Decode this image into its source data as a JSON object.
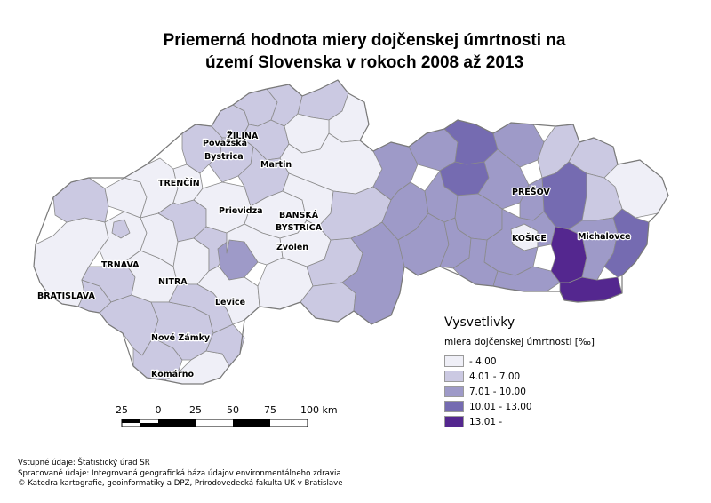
{
  "title": {
    "line1": "Priemerná hodnota miery dojčenskej úmrtnosti na",
    "line2": "území Slovenska v rokoch 2008 až 2013"
  },
  "cities": [
    {
      "key": "zilina",
      "label": "ŽILINA"
    },
    {
      "key": "povazska1",
      "label": "Považská"
    },
    {
      "key": "povazska2",
      "label": "Bystrica"
    },
    {
      "key": "martin",
      "label": "Martin"
    },
    {
      "key": "trencin",
      "label": "TRENČÍN"
    },
    {
      "key": "prievidza",
      "label": "Prievidza"
    },
    {
      "key": "bb1",
      "label": "BANSKÁ"
    },
    {
      "key": "bb2",
      "label": "BYSTRICA"
    },
    {
      "key": "zvolen",
      "label": "Zvolen"
    },
    {
      "key": "trnava",
      "label": "TRNAVA"
    },
    {
      "key": "nitra",
      "label": "NITRA"
    },
    {
      "key": "bratislava",
      "label": "BRATISLAVA"
    },
    {
      "key": "levice",
      "label": "Levice"
    },
    {
      "key": "novezamky",
      "label": "Nové Zámky"
    },
    {
      "key": "komarno",
      "label": "Komárno"
    },
    {
      "key": "presov",
      "label": "PREŠOV"
    },
    {
      "key": "kosice",
      "label": "KOŠICE"
    },
    {
      "key": "michalovce",
      "label": "Michalovce"
    }
  ],
  "legend": {
    "title": "Vysvetlivky",
    "subtitle": "miera dojčenskej úmrtnosti [‰]",
    "classes": [
      {
        "label": " - 4.00",
        "color": "#efeff7"
      },
      {
        "label": "4.01 - 7.00",
        "color": "#cbc9e2"
      },
      {
        "label": "7.01 - 10.00",
        "color": "#9e9ac8"
      },
      {
        "label": "10.01 - 13.00",
        "color": "#756bb1"
      },
      {
        "label": "13.01 -",
        "color": "#54278f"
      }
    ]
  },
  "scale_bar": {
    "labels": [
      "25",
      "0",
      "25",
      "50",
      "75",
      "100 km"
    ]
  },
  "credits": {
    "line1": "Vstupné údaje: Štatistický úrad SR",
    "line2": "Spracované údaje: Integrovaná geografická báza údajov environmentálneho zdravia",
    "line3": "© Katedra kartografie, geoinformatiky a DPZ, Prírodovedecká fakulta UK v Bratislave"
  }
}
